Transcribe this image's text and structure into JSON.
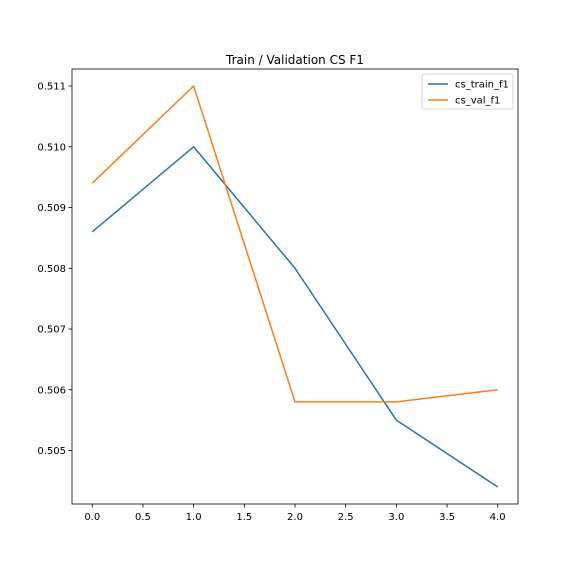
{
  "chart_data": {
    "type": "line",
    "title": "Train / Validation CS F1",
    "xlabel": "",
    "ylabel": "",
    "x": [
      0,
      1,
      2,
      3,
      4
    ],
    "xlim": [
      -0.2,
      4.2
    ],
    "ylim": [
      0.50412,
      0.51128
    ],
    "xticks": [
      0.0,
      0.5,
      1.0,
      1.5,
      2.0,
      2.5,
      3.0,
      3.5,
      4.0
    ],
    "xtick_labels": [
      "0.0",
      "0.5",
      "1.0",
      "1.5",
      "2.0",
      "2.5",
      "3.0",
      "3.5",
      "4.0"
    ],
    "yticks": [
      0.505,
      0.506,
      0.507,
      0.508,
      0.509,
      0.51,
      0.511
    ],
    "ytick_labels": [
      "0.505",
      "0.506",
      "0.507",
      "0.508",
      "0.509",
      "0.510",
      "0.511"
    ],
    "grid": false,
    "legend_position": "top-right",
    "series": [
      {
        "name": "cs_train_f1",
        "color": "#1f77b4",
        "values": [
          0.5086,
          0.51,
          0.508,
          0.5055,
          0.5044
        ]
      },
      {
        "name": "cs_val_f1",
        "color": "#ff7f0e",
        "values": [
          0.5094,
          0.511,
          0.5058,
          0.5058,
          0.506
        ]
      }
    ]
  }
}
